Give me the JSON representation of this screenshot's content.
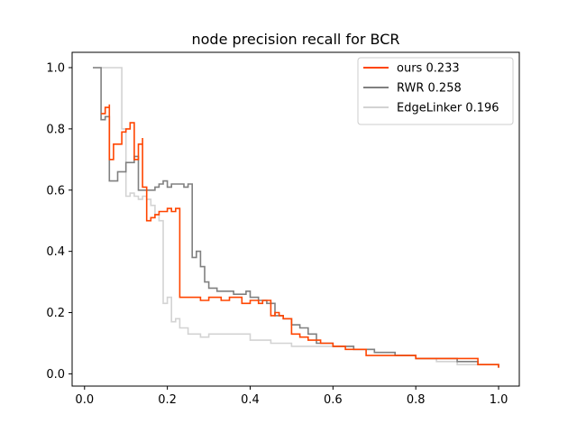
{
  "chart_data": {
    "type": "line",
    "title": "node precision recall for BCR",
    "xlabel": "",
    "ylabel": "",
    "xlim": [
      -0.03,
      1.05
    ],
    "ylim": [
      -0.04,
      1.05
    ],
    "xticks": [
      "0.0",
      "0.2",
      "0.4",
      "0.6",
      "0.8",
      "1.0"
    ],
    "yticks": [
      "0.0",
      "0.2",
      "0.4",
      "0.6",
      "0.8",
      "1.0"
    ],
    "grid": false,
    "legend_position": "top-right",
    "series": [
      {
        "name": "ours 0.233",
        "color": "#ff4500",
        "x": [
          0.04,
          0.05,
          0.06,
          0.06,
          0.07,
          0.09,
          0.1,
          0.11,
          0.12,
          0.12,
          0.13,
          0.14,
          0.14,
          0.15,
          0.15,
          0.16,
          0.17,
          0.18,
          0.19,
          0.2,
          0.21,
          0.22,
          0.22,
          0.23,
          0.25,
          0.28,
          0.3,
          0.31,
          0.33,
          0.35,
          0.38,
          0.4,
          0.42,
          0.43,
          0.44,
          0.45,
          0.46,
          0.47,
          0.48,
          0.5,
          0.52,
          0.54,
          0.57,
          0.6,
          0.63,
          0.65,
          0.68,
          0.7,
          0.75,
          0.8,
          0.85,
          0.9,
          0.95,
          1.0
        ],
        "y": [
          0.85,
          0.87,
          0.88,
          0.7,
          0.75,
          0.79,
          0.8,
          0.82,
          0.81,
          0.7,
          0.75,
          0.77,
          0.61,
          0.6,
          0.5,
          0.51,
          0.52,
          0.53,
          0.53,
          0.54,
          0.53,
          0.54,
          0.54,
          0.25,
          0.25,
          0.24,
          0.25,
          0.25,
          0.24,
          0.25,
          0.23,
          0.24,
          0.23,
          0.24,
          0.24,
          0.19,
          0.2,
          0.19,
          0.18,
          0.13,
          0.12,
          0.11,
          0.1,
          0.09,
          0.08,
          0.08,
          0.06,
          0.06,
          0.06,
          0.05,
          0.05,
          0.05,
          0.03,
          0.02
        ]
      },
      {
        "name": "RWR 0.258",
        "color": "#808080",
        "x": [
          0.02,
          0.04,
          0.04,
          0.05,
          0.06,
          0.06,
          0.08,
          0.1,
          0.12,
          0.13,
          0.15,
          0.17,
          0.18,
          0.19,
          0.2,
          0.21,
          0.22,
          0.24,
          0.25,
          0.26,
          0.27,
          0.28,
          0.29,
          0.3,
          0.32,
          0.34,
          0.36,
          0.39,
          0.4,
          0.42,
          0.44,
          0.46,
          0.48,
          0.5,
          0.52,
          0.54,
          0.56,
          0.6,
          0.65,
          0.7,
          0.75,
          0.8,
          0.85,
          0.9,
          0.95,
          1.0
        ],
        "y": [
          1.0,
          1.0,
          0.83,
          0.84,
          0.8,
          0.63,
          0.66,
          0.69,
          0.71,
          0.6,
          0.6,
          0.61,
          0.62,
          0.63,
          0.61,
          0.62,
          0.62,
          0.61,
          0.62,
          0.38,
          0.4,
          0.35,
          0.3,
          0.28,
          0.27,
          0.27,
          0.26,
          0.27,
          0.25,
          0.24,
          0.23,
          0.19,
          0.18,
          0.16,
          0.15,
          0.13,
          0.1,
          0.09,
          0.08,
          0.07,
          0.06,
          0.05,
          0.05,
          0.04,
          0.03,
          0.02
        ]
      },
      {
        "name": "EdgeLinker 0.196",
        "color": "#d3d3d3",
        "x": [
          0.02,
          0.05,
          0.08,
          0.09,
          0.1,
          0.11,
          0.12,
          0.13,
          0.14,
          0.15,
          0.16,
          0.17,
          0.18,
          0.19,
          0.2,
          0.21,
          0.22,
          0.23,
          0.25,
          0.28,
          0.3,
          0.32,
          0.35,
          0.38,
          0.4,
          0.42,
          0.45,
          0.5,
          0.55,
          0.6,
          0.65,
          0.7,
          0.75,
          0.8,
          0.85,
          0.9,
          0.95,
          1.0
        ],
        "y": [
          1.0,
          1.0,
          1.0,
          0.8,
          0.58,
          0.59,
          0.58,
          0.57,
          0.58,
          0.57,
          0.55,
          0.52,
          0.5,
          0.23,
          0.25,
          0.17,
          0.18,
          0.15,
          0.13,
          0.12,
          0.13,
          0.13,
          0.13,
          0.13,
          0.11,
          0.11,
          0.1,
          0.09,
          0.09,
          0.09,
          0.08,
          0.07,
          0.06,
          0.05,
          0.04,
          0.03,
          0.03,
          0.02
        ]
      }
    ]
  }
}
